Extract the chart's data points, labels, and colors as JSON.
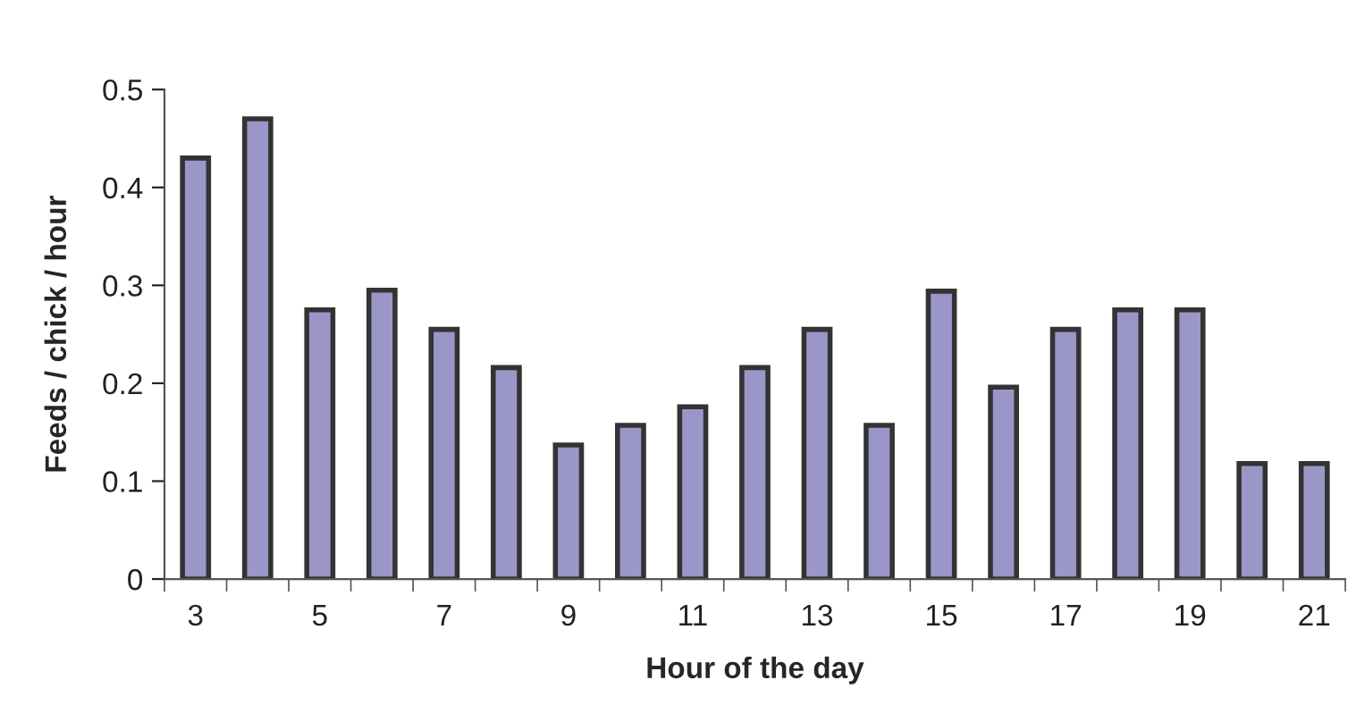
{
  "chart_data": {
    "type": "bar",
    "categories": [
      "3",
      null,
      "5",
      null,
      "7",
      null,
      "9",
      null,
      "11",
      null,
      "13",
      null,
      "15",
      null,
      "17",
      null,
      "19",
      null,
      "21"
    ],
    "values": [
      0.43,
      0.47,
      0.275,
      0.295,
      0.255,
      0.216,
      0.137,
      0.157,
      0.176,
      0.216,
      0.255,
      0.157,
      0.294,
      0.196,
      0.255,
      0.275,
      0.275,
      0.118,
      0.118
    ],
    "color": "#9b96c8",
    "xlabel": "Hour of the day",
    "ylabel": "Feeds / chick / hour",
    "ylim": [
      0,
      0.5
    ],
    "yticks": [
      0,
      0.1,
      0.2,
      0.3,
      0.4,
      0.5
    ],
    "grid": false,
    "legend": false
  }
}
